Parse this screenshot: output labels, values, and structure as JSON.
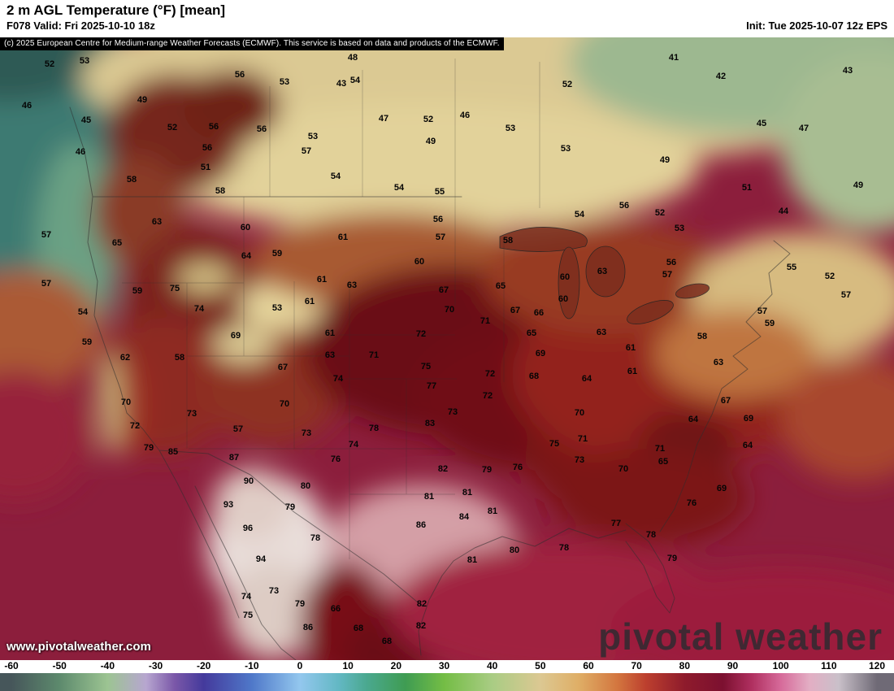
{
  "header": {
    "title": "2 m AGL Temperature (°F) [mean]",
    "forecast": "F078 Valid: Fri 2025-10-10 18z",
    "init": "Init: Tue 2025-10-07 12z EPS"
  },
  "copyright_notice": "(c) 2025 European Centre for Medium-range Weather Forecasts (ECMWF). This service is based on data and products of the ECMWF.",
  "map": {
    "watermark": "pivotal weather",
    "website": "www.pivotalweather.com"
  },
  "colorbar": {
    "unit": "°F",
    "min": -60,
    "max": 120,
    "ticks": [
      -60,
      -50,
      -40,
      -30,
      -20,
      -10,
      0,
      10,
      20,
      30,
      40,
      50,
      60,
      70,
      80,
      90,
      100,
      110,
      120
    ],
    "stops": [
      {
        "value": -60,
        "color": "#46565a"
      },
      {
        "value": -50,
        "color": "#5d8a6d"
      },
      {
        "value": -40,
        "color": "#9cc492"
      },
      {
        "value": -32,
        "color": "#b7a6d0"
      },
      {
        "value": -26,
        "color": "#7a57a8"
      },
      {
        "value": -20,
        "color": "#443a9c"
      },
      {
        "value": -10,
        "color": "#4f78c9"
      },
      {
        "value": 0,
        "color": "#93c7ee"
      },
      {
        "value": 8,
        "color": "#63b8c4"
      },
      {
        "value": 14,
        "color": "#4aa88e"
      },
      {
        "value": 22,
        "color": "#3f9c52"
      },
      {
        "value": 30,
        "color": "#74bd45"
      },
      {
        "value": 40,
        "color": "#a9cc84"
      },
      {
        "value": 50,
        "color": "#dcc892"
      },
      {
        "value": 58,
        "color": "#dfae66"
      },
      {
        "value": 66,
        "color": "#d3763f"
      },
      {
        "value": 72,
        "color": "#bc3f2e"
      },
      {
        "value": 80,
        "color": "#8e1b2c"
      },
      {
        "value": 88,
        "color": "#7c1030"
      },
      {
        "value": 94,
        "color": "#b03060"
      },
      {
        "value": 100,
        "color": "#d66a9a"
      },
      {
        "value": 106,
        "color": "#e3aec4"
      },
      {
        "value": 112,
        "color": "#c9c0c9"
      },
      {
        "value": 120,
        "color": "#6f6a76"
      }
    ]
  },
  "chart_data": {
    "type": "heatmap",
    "title": "2 m AGL Temperature (°F) [mean]",
    "units": "°F",
    "forecast_hour": "F078",
    "valid": "Fri 2025-10-10 18z",
    "init": "Tue 2025-10-07 12z",
    "model": "EPS",
    "scale_range": [
      -60,
      120
    ],
    "points_format": [
      "temp_f",
      "x_px",
      "y_px"
    ],
    "points": [
      [
        52,
        61,
        33
      ],
      [
        53,
        104,
        29
      ],
      [
        49,
        175,
        77
      ],
      [
        56,
        295,
        46
      ],
      [
        53,
        350,
        55
      ],
      [
        43,
        420,
        57
      ],
      [
        48,
        434,
        25
      ],
      [
        54,
        437,
        53
      ],
      [
        47,
        472,
        100
      ],
      [
        52,
        527,
        101
      ],
      [
        46,
        572,
        96
      ],
      [
        52,
        698,
        58
      ],
      [
        41,
        829,
        25
      ],
      [
        42,
        887,
        48
      ],
      [
        45,
        937,
        106
      ],
      [
        47,
        989,
        112
      ],
      [
        43,
        1043,
        41
      ],
      [
        46,
        33,
        84
      ],
      [
        45,
        106,
        102
      ],
      [
        46,
        99,
        141
      ],
      [
        52,
        212,
        111
      ],
      [
        56,
        263,
        110
      ],
      [
        56,
        322,
        113
      ],
      [
        53,
        385,
        122
      ],
      [
        49,
        530,
        128
      ],
      [
        53,
        628,
        112
      ],
      [
        53,
        696,
        137
      ],
      [
        56,
        255,
        136
      ],
      [
        57,
        377,
        140
      ],
      [
        51,
        253,
        160
      ],
      [
        54,
        413,
        171
      ],
      [
        54,
        491,
        185
      ],
      [
        55,
        541,
        190
      ],
      [
        49,
        818,
        151
      ],
      [
        51,
        919,
        185
      ],
      [
        49,
        1056,
        182
      ],
      [
        44,
        964,
        214
      ],
      [
        58,
        162,
        175
      ],
      [
        58,
        271,
        189
      ],
      [
        60,
        302,
        234
      ],
      [
        61,
        422,
        246
      ],
      [
        56,
        539,
        224
      ],
      [
        57,
        542,
        246
      ],
      [
        58,
        625,
        250
      ],
      [
        54,
        713,
        218
      ],
      [
        56,
        768,
        207
      ],
      [
        52,
        812,
        216
      ],
      [
        53,
        836,
        235
      ],
      [
        57,
        57,
        243
      ],
      [
        65,
        144,
        253
      ],
      [
        63,
        193,
        227
      ],
      [
        64,
        303,
        269
      ],
      [
        59,
        341,
        266
      ],
      [
        61,
        396,
        298
      ],
      [
        63,
        433,
        305
      ],
      [
        60,
        516,
        276
      ],
      [
        65,
        616,
        306
      ],
      [
        60,
        695,
        295
      ],
      [
        63,
        741,
        288
      ],
      [
        56,
        826,
        277
      ],
      [
        55,
        974,
        283
      ],
      [
        52,
        1021,
        294
      ],
      [
        57,
        1041,
        317
      ],
      [
        57,
        57,
        303
      ],
      [
        59,
        169,
        312
      ],
      [
        75,
        215,
        309
      ],
      [
        74,
        245,
        334
      ],
      [
        53,
        341,
        333
      ],
      [
        61,
        381,
        325
      ],
      [
        67,
        546,
        311
      ],
      [
        70,
        553,
        335
      ],
      [
        67,
        634,
        336
      ],
      [
        66,
        663,
        339
      ],
      [
        60,
        693,
        322
      ],
      [
        57,
        821,
        292
      ],
      [
        54,
        102,
        338
      ],
      [
        59,
        107,
        375
      ],
      [
        69,
        290,
        367
      ],
      [
        61,
        406,
        364
      ],
      [
        72,
        518,
        365
      ],
      [
        71,
        597,
        349
      ],
      [
        65,
        654,
        364
      ],
      [
        69,
        665,
        389
      ],
      [
        63,
        740,
        363
      ],
      [
        61,
        776,
        382
      ],
      [
        58,
        864,
        368
      ],
      [
        59,
        947,
        352
      ],
      [
        57,
        938,
        337
      ],
      [
        62,
        154,
        394
      ],
      [
        58,
        221,
        394
      ],
      [
        63,
        406,
        391
      ],
      [
        71,
        460,
        391
      ],
      [
        67,
        348,
        406
      ],
      [
        74,
        416,
        420
      ],
      [
        75,
        524,
        405
      ],
      [
        77,
        531,
        429
      ],
      [
        72,
        603,
        414
      ],
      [
        68,
        657,
        417
      ],
      [
        64,
        722,
        420
      ],
      [
        61,
        778,
        411
      ],
      [
        63,
        884,
        400
      ],
      [
        67,
        893,
        447
      ],
      [
        70,
        155,
        449
      ],
      [
        70,
        350,
        451
      ],
      [
        72,
        600,
        441
      ],
      [
        73,
        557,
        461
      ],
      [
        70,
        713,
        462
      ],
      [
        64,
        853,
        470
      ],
      [
        69,
        921,
        469
      ],
      [
        72,
        166,
        478
      ],
      [
        73,
        236,
        463
      ],
      [
        57,
        293,
        482
      ],
      [
        73,
        377,
        487
      ],
      [
        78,
        460,
        481
      ],
      [
        83,
        529,
        475
      ],
      [
        75,
        682,
        500
      ],
      [
        71,
        717,
        494
      ],
      [
        74,
        435,
        501
      ],
      [
        76,
        413,
        519
      ],
      [
        73,
        713,
        520
      ],
      [
        70,
        767,
        531
      ],
      [
        65,
        816,
        522
      ],
      [
        71,
        812,
        506
      ],
      [
        64,
        920,
        502
      ],
      [
        79,
        183,
        505
      ],
      [
        85,
        213,
        510
      ],
      [
        87,
        288,
        517
      ],
      [
        90,
        306,
        546
      ],
      [
        80,
        376,
        552
      ],
      [
        82,
        545,
        531
      ],
      [
        79,
        599,
        532
      ],
      [
        76,
        637,
        529
      ],
      [
        81,
        528,
        565
      ],
      [
        81,
        575,
        560
      ],
      [
        81,
        606,
        583
      ],
      [
        84,
        571,
        590
      ],
      [
        86,
        518,
        600
      ],
      [
        93,
        281,
        575
      ],
      [
        96,
        305,
        604
      ],
      [
        94,
        321,
        642
      ],
      [
        79,
        357,
        578
      ],
      [
        78,
        388,
        616
      ],
      [
        81,
        581,
        643
      ],
      [
        80,
        633,
        631
      ],
      [
        78,
        694,
        628
      ],
      [
        77,
        758,
        598
      ],
      [
        78,
        801,
        612
      ],
      [
        79,
        827,
        641
      ],
      [
        76,
        851,
        573
      ],
      [
        69,
        888,
        555
      ],
      [
        73,
        337,
        681
      ],
      [
        74,
        303,
        688
      ],
      [
        79,
        369,
        697
      ],
      [
        75,
        305,
        711
      ],
      [
        86,
        379,
        726
      ],
      [
        66,
        413,
        703
      ],
      [
        68,
        441,
        727
      ],
      [
        68,
        476,
        743
      ],
      [
        82,
        519,
        697
      ],
      [
        82,
        518,
        724
      ]
    ]
  }
}
